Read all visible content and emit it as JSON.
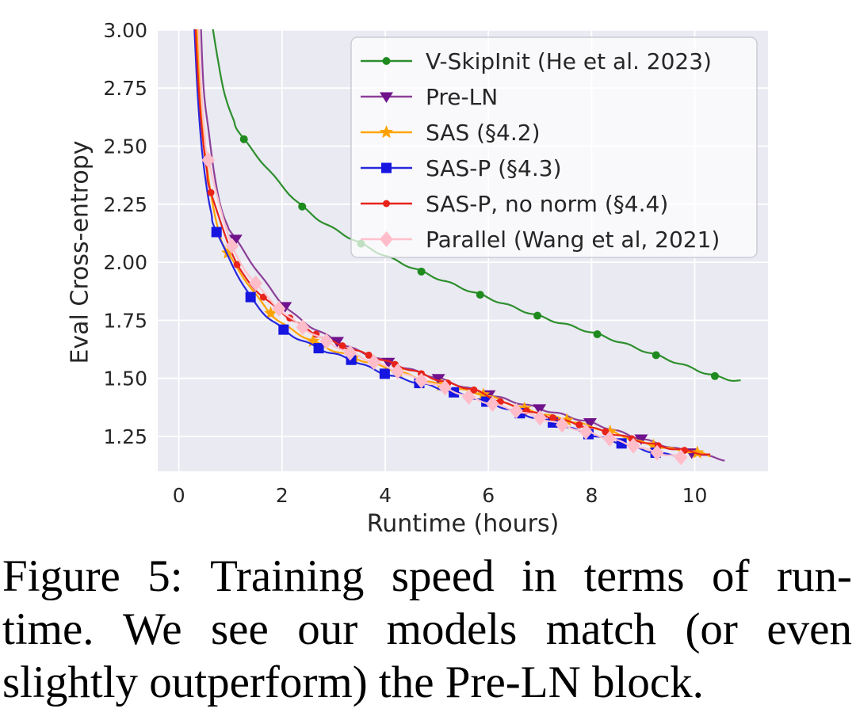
{
  "caption": {
    "lines": [
      {
        "text": "Figure 5: Training speed in terms of run-",
        "justify": true
      },
      {
        "text": "time. We see our models match (or even",
        "justify": true
      },
      {
        "text": "slightly outperform) the Pre-LN block.",
        "justify": false
      }
    ]
  },
  "chart_data": {
    "type": "line",
    "title": "",
    "xlabel": "Runtime (hours)",
    "ylabel": "Eval Cross-entropy",
    "xlim": [
      -0.41,
      11.42
    ],
    "ylim": [
      1.1,
      3.003
    ],
    "xticks": [
      0,
      2,
      4,
      6,
      8,
      10
    ],
    "yticks": [
      1.25,
      1.5,
      1.75,
      2.0,
      2.25,
      2.5,
      2.75,
      3.0
    ],
    "grid": true,
    "background": "#eaeaf2",
    "grid_color": "#ffffff",
    "text_color": "#262626",
    "legend_position": "upper right",
    "series": [
      {
        "name": "V-SkipInit (He et al. 2023)",
        "color": "#2d8f2d",
        "marker_color": "#1f8b1f",
        "marker": "circle",
        "marker_size": 10,
        "head": [
          [
            0.62,
            3.06
          ],
          [
            0.75,
            2.88
          ],
          [
            0.88,
            2.73
          ],
          [
            1.05,
            2.62
          ]
        ],
        "points": [
          [
            1.26,
            2.53
          ],
          [
            2.39,
            2.24
          ],
          [
            3.53,
            2.08
          ],
          [
            4.7,
            1.96
          ],
          [
            5.84,
            1.86
          ],
          [
            6.95,
            1.77
          ],
          [
            8.11,
            1.69
          ],
          [
            9.25,
            1.6
          ],
          [
            10.39,
            1.51
          ]
        ],
        "tail": [
          [
            10.89,
            1.49
          ]
        ]
      },
      {
        "name": "Pre-LN",
        "color": "#8c3f98",
        "marker_color": "#70128c",
        "marker": "triangle-down",
        "marker_size": 17,
        "head": [
          [
            0.42,
            3.06
          ],
          [
            0.48,
            2.75
          ],
          [
            0.58,
            2.56
          ],
          [
            0.68,
            2.39
          ],
          [
            0.8,
            2.25
          ],
          [
            0.94,
            2.16
          ]
        ],
        "points": [
          [
            1.1,
            2.1
          ],
          [
            2.06,
            1.81
          ],
          [
            3.07,
            1.66
          ],
          [
            4.06,
            1.57
          ],
          [
            5.03,
            1.5
          ],
          [
            6.01,
            1.43
          ],
          [
            6.99,
            1.37
          ],
          [
            7.97,
            1.31
          ],
          [
            8.96,
            1.24
          ],
          [
            9.94,
            1.18
          ]
        ],
        "tail": [
          [
            10.58,
            1.15
          ]
        ]
      },
      {
        "name": "SAS (§4.2)",
        "color": "#ffa502",
        "marker_color": "#ffa200",
        "marker": "star",
        "marker_size": 18,
        "head": [
          [
            0.34,
            3.06
          ],
          [
            0.42,
            2.72
          ],
          [
            0.52,
            2.46
          ],
          [
            0.64,
            2.27
          ],
          [
            0.78,
            2.13
          ]
        ],
        "points": [
          [
            0.95,
            2.04
          ],
          [
            1.78,
            1.78
          ],
          [
            2.6,
            1.66
          ],
          [
            3.39,
            1.59
          ],
          [
            4.25,
            1.53
          ],
          [
            5.08,
            1.47
          ],
          [
            5.9,
            1.43
          ],
          [
            6.7,
            1.37
          ],
          [
            7.52,
            1.32
          ],
          [
            8.36,
            1.27
          ],
          [
            9.2,
            1.21
          ],
          [
            10.05,
            1.18
          ]
        ],
        "tail": [
          [
            10.3,
            1.165
          ]
        ]
      },
      {
        "name": "SAS-P (§4.3)",
        "color": "#2727de",
        "marker_color": "#1616e0",
        "marker": "square",
        "marker_size": 13,
        "head": [
          [
            0.29,
            3.06
          ],
          [
            0.36,
            2.74
          ],
          [
            0.44,
            2.5
          ],
          [
            0.54,
            2.32
          ],
          [
            0.63,
            2.21
          ]
        ],
        "points": [
          [
            0.73,
            2.13
          ],
          [
            1.39,
            1.85
          ],
          [
            2.03,
            1.71
          ],
          [
            2.71,
            1.63
          ],
          [
            3.34,
            1.58
          ],
          [
            3.99,
            1.52
          ],
          [
            4.66,
            1.48
          ],
          [
            5.33,
            1.44
          ],
          [
            5.96,
            1.4
          ],
          [
            6.61,
            1.35
          ],
          [
            7.25,
            1.31
          ],
          [
            7.94,
            1.26
          ],
          [
            8.58,
            1.22
          ],
          [
            9.24,
            1.18
          ]
        ],
        "tail": [
          [
            9.6,
            1.17
          ]
        ]
      },
      {
        "name": "SAS-P, no norm (§4.4)",
        "color": "#e8231a",
        "marker_color": "#e8231a",
        "marker": "circle",
        "marker_size": 9,
        "head": [
          [
            0.31,
            3.06
          ],
          [
            0.38,
            2.76
          ],
          [
            0.46,
            2.54
          ],
          [
            0.54,
            2.4
          ]
        ],
        "points": [
          [
            0.62,
            2.3
          ],
          [
            1.13,
            1.99
          ],
          [
            1.64,
            1.85
          ],
          [
            2.15,
            1.76
          ],
          [
            2.66,
            1.69
          ],
          [
            3.17,
            1.64
          ],
          [
            3.68,
            1.6
          ],
          [
            4.19,
            1.56
          ],
          [
            4.7,
            1.52
          ],
          [
            5.21,
            1.48
          ],
          [
            5.72,
            1.45
          ],
          [
            6.23,
            1.4
          ],
          [
            6.74,
            1.36
          ],
          [
            7.25,
            1.33
          ],
          [
            7.76,
            1.3
          ],
          [
            8.27,
            1.27
          ],
          [
            8.78,
            1.24
          ],
          [
            9.29,
            1.21
          ],
          [
            9.8,
            1.19
          ]
        ],
        "tail": [
          [
            10.3,
            1.17
          ]
        ]
      },
      {
        "name": "Parallel (Wang et al, 2021)",
        "color": "#ffc2cd",
        "marker_color": "#ffbdca",
        "marker": "diamond",
        "marker_size": 19,
        "head": [
          [
            0.37,
            3.06
          ],
          [
            0.44,
            2.72
          ],
          [
            0.5,
            2.55
          ]
        ],
        "points": [
          [
            0.57,
            2.44
          ],
          [
            1.03,
            2.07
          ],
          [
            1.49,
            1.91
          ],
          [
            1.94,
            1.8
          ],
          [
            2.4,
            1.72
          ],
          [
            2.86,
            1.66
          ],
          [
            3.32,
            1.61
          ],
          [
            3.78,
            1.57
          ],
          [
            4.24,
            1.53
          ],
          [
            4.7,
            1.49
          ],
          [
            5.16,
            1.46
          ],
          [
            5.62,
            1.42
          ],
          [
            6.08,
            1.39
          ],
          [
            6.54,
            1.36
          ],
          [
            7.0,
            1.33
          ],
          [
            7.43,
            1.3
          ],
          [
            7.89,
            1.27
          ],
          [
            8.35,
            1.24
          ],
          [
            8.81,
            1.21
          ],
          [
            9.27,
            1.18
          ],
          [
            9.73,
            1.16
          ]
        ],
        "tail": []
      }
    ]
  }
}
